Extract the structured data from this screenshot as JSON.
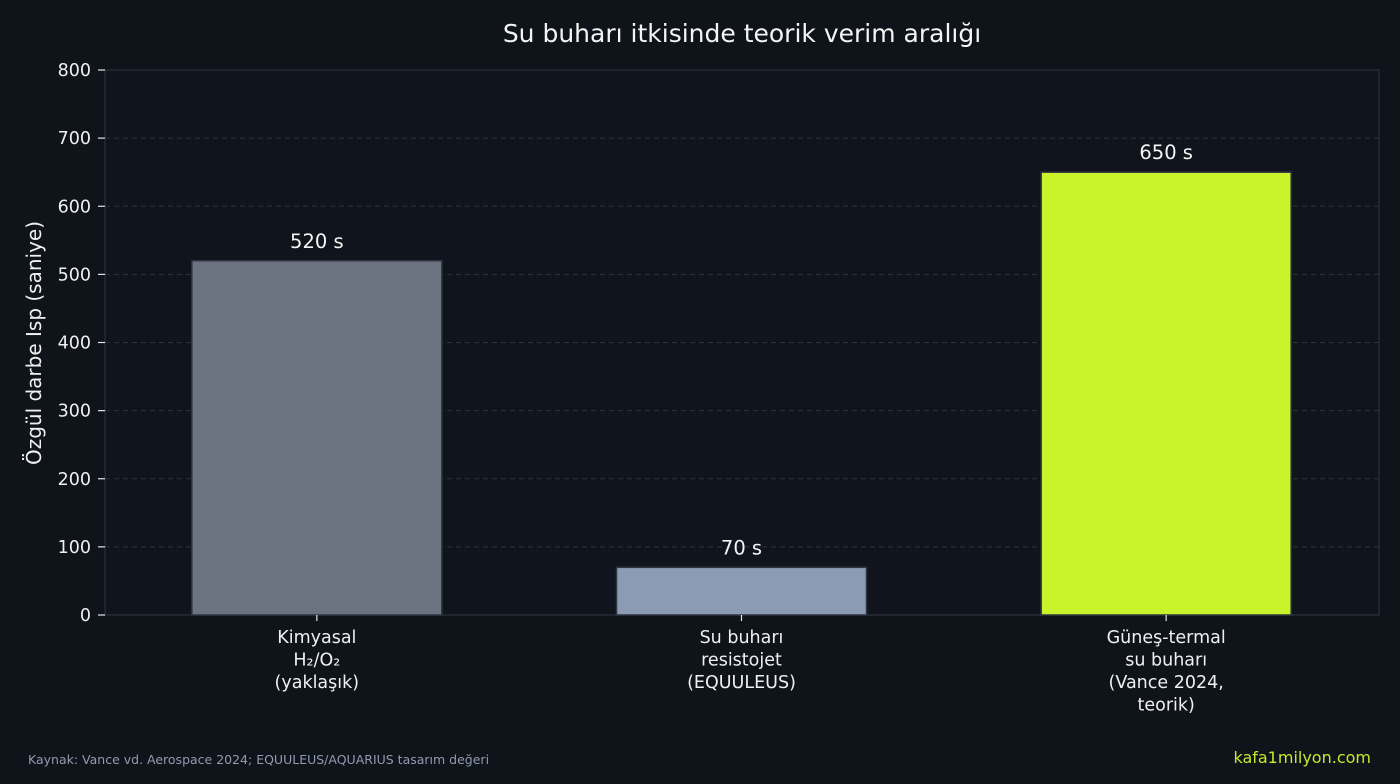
{
  "chart_data": {
    "type": "bar",
    "title": "Su buharı itkisinde teorik verim aralığı",
    "xlabel": "",
    "ylabel": "Özgül darbe Isp (saniye)",
    "ylim": [
      0,
      800
    ],
    "yticks": [
      0,
      100,
      200,
      300,
      400,
      500,
      600,
      700,
      800
    ],
    "grid": "horizontal-dashed",
    "categories": [
      [
        "Kimyasal",
        "H₂/O₂",
        "(yaklaşık)"
      ],
      [
        "Su buharı",
        "resistojet",
        "(EQUULEUS)"
      ],
      [
        "Güneş-termal",
        "su buharı",
        "(Vance 2024,",
        "teorik)"
      ]
    ],
    "values": [
      520,
      70,
      650
    ],
    "value_labels": [
      "520 s",
      "70 s",
      "650 s"
    ],
    "colors": [
      "#6b7280",
      "#8b9bb4",
      "#c9f42b"
    ]
  },
  "footer": {
    "source": "Kaynak: Vance vd. Aerospace 2024; EQUULEUS/AQUARIUS tasarım değeri",
    "brand": "kafa1milyon.com"
  }
}
